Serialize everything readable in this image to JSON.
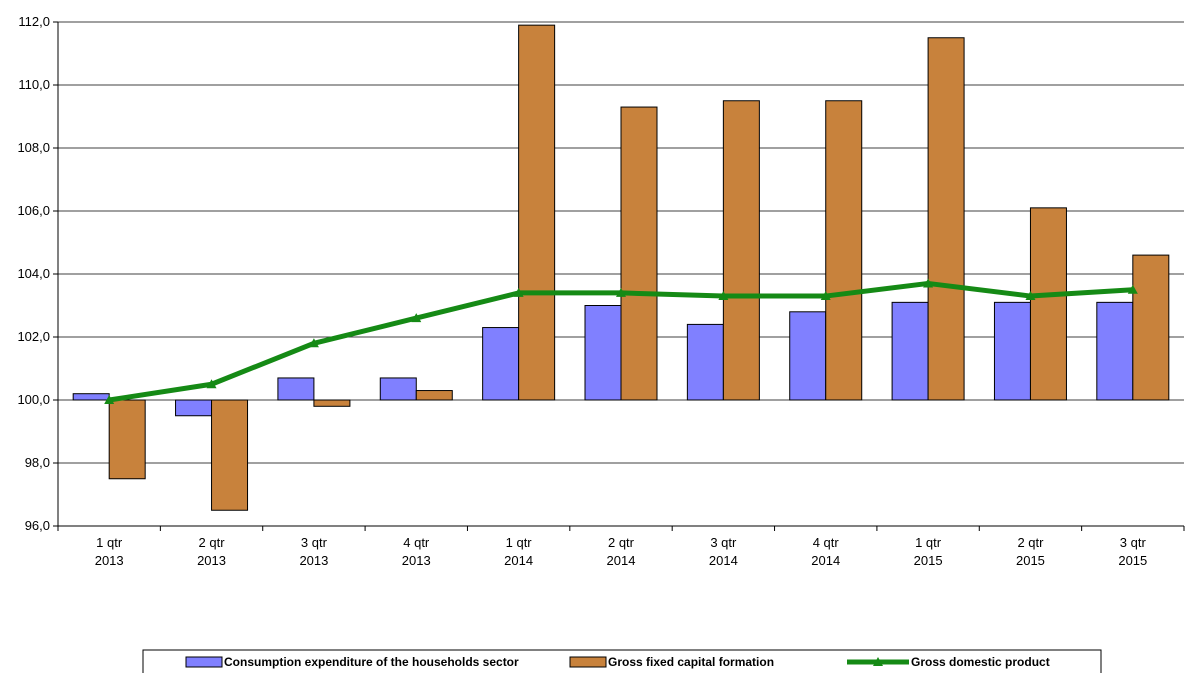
{
  "chart_data": {
    "type": "bar",
    "categories": [
      [
        "1 qtr",
        "2013"
      ],
      [
        "2 qtr",
        "2013"
      ],
      [
        "3 qtr",
        "2013"
      ],
      [
        "4 qtr",
        "2013"
      ],
      [
        "1 qtr",
        "2014"
      ],
      [
        "2 qtr",
        "2014"
      ],
      [
        "3 qtr",
        "2014"
      ],
      [
        "4 qtr",
        "2014"
      ],
      [
        "1 qtr",
        "2015"
      ],
      [
        "2 qtr",
        "2015"
      ],
      [
        "3 qtr",
        "2015"
      ]
    ],
    "ylim": [
      96.0,
      112.0
    ],
    "yticks": [
      "96,0",
      "98,0",
      "100,0",
      "102,0",
      "104,0",
      "106,0",
      "108,0",
      "110,0",
      "112,0"
    ],
    "baseline": 100.0,
    "grid": true,
    "legend_position": "bottom",
    "series": [
      {
        "name": "Consumption expenditure of the households sector",
        "kind": "bar",
        "color": "#8080ff",
        "values": [
          100.2,
          99.5,
          100.7,
          100.7,
          102.3,
          103.0,
          102.4,
          102.8,
          103.1,
          103.1,
          103.1
        ]
      },
      {
        "name": "Gross fixed capital formation",
        "kind": "bar",
        "color": "#c8823c",
        "values": [
          97.5,
          96.5,
          99.8,
          100.3,
          111.9,
          109.3,
          109.5,
          109.5,
          111.5,
          106.1,
          104.6
        ]
      },
      {
        "name": "Gross domestic product",
        "kind": "line",
        "color": "#158a15",
        "values": [
          100.0,
          100.5,
          101.8,
          102.6,
          103.4,
          103.4,
          103.3,
          103.3,
          103.7,
          103.3,
          103.5
        ]
      }
    ]
  }
}
